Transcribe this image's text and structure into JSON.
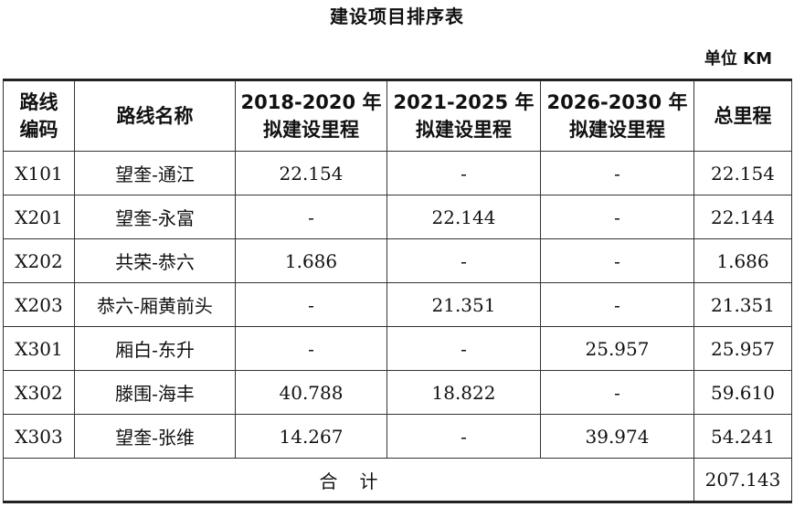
{
  "title": "建设项目排序表",
  "unit": "单位 KM",
  "headers": {
    "code": [
      "路线",
      "编码"
    ],
    "name": "路线名称",
    "p1": [
      "2018-2020 年",
      "拟建设里程"
    ],
    "p2": [
      "2021-2025 年",
      "拟建设里程"
    ],
    "p3": [
      "2026-2030 年",
      "拟建设里程"
    ],
    "total": "总里程"
  },
  "rows": [
    {
      "code": "X101",
      "name": "望奎-通江",
      "p1": "22.154",
      "p2": "-",
      "p3": "-",
      "total": "22.154"
    },
    {
      "code": "X201",
      "name": "望奎-永富",
      "p1": "-",
      "p2": "22.144",
      "p3": "-",
      "total": "22.144"
    },
    {
      "code": "X202",
      "name": "共荣-恭六",
      "p1": "1.686",
      "p2": "-",
      "p3": "-",
      "total": "1.686"
    },
    {
      "code": "X203",
      "name": "恭六-厢黄前头",
      "p1": "-",
      "p2": "21.351",
      "p3": "-",
      "total": "21.351"
    },
    {
      "code": "X301",
      "name": "厢白-东升",
      "p1": "-",
      "p2": "-",
      "p3": "25.957",
      "total": "25.957"
    },
    {
      "code": "X302",
      "name": "滕围-海丰",
      "p1": "40.788",
      "p2": "18.822",
      "p3": "-",
      "total": "59.610"
    },
    {
      "code": "X303",
      "name": "望奎-张维",
      "p1": "14.267",
      "p2": "-",
      "p3": "39.974",
      "total": "54.241"
    }
  ],
  "footer": {
    "label": "合计",
    "total": "207.143"
  }
}
